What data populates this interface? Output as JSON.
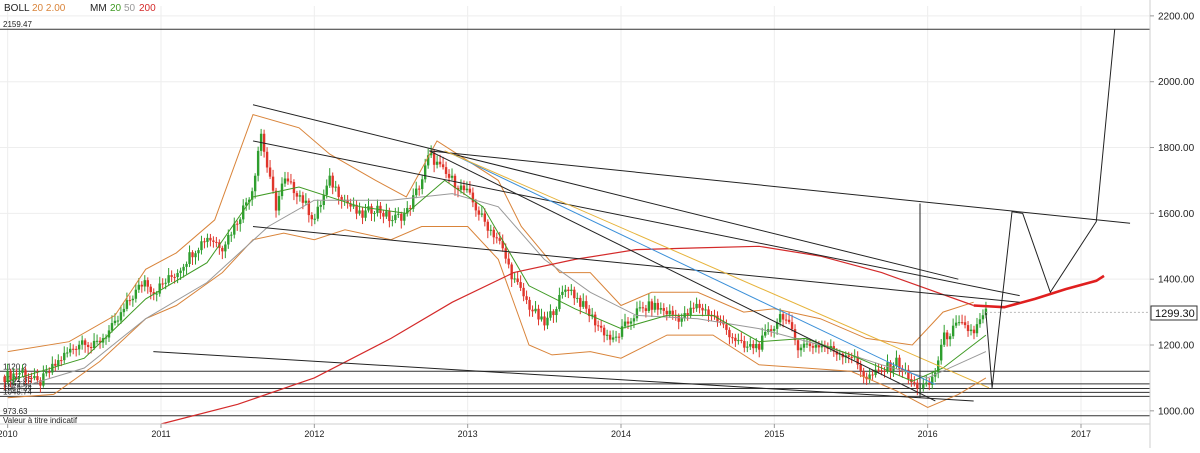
{
  "legend": {
    "boll_label": "BOLL",
    "boll_params": "20 2.00",
    "ma_label": "MM",
    "ma_fast": "20",
    "ma_mid": "50",
    "ma_slow": "200"
  },
  "colors": {
    "up": "#2e9e2e",
    "down": "#e0352b",
    "bollinger": "#d9843a",
    "ma20": "#3f9a24",
    "ma50": "#999999",
    "ma200": "#d42a2a",
    "projection": "#e01f1f",
    "trend": "#222222",
    "trend_blue": "#3a8fd8",
    "trend_yellow": "#e6b33a",
    "price_box": "#333333"
  },
  "chart_data": {
    "type": "candlestick",
    "title": "",
    "xlabel": "",
    "ylabel": "",
    "x_ticks": [
      "2010",
      "2011",
      "2012",
      "2013",
      "2014",
      "2015",
      "2016",
      "2017"
    ],
    "y_ticks": [
      "1000.00",
      "1200.00",
      "1400.00",
      "1600.00",
      "1800.00",
      "2000.00",
      "2200.00"
    ],
    "ylim": [
      960,
      2230
    ],
    "xlim": [
      2009.95,
      2017.45
    ],
    "last_price": "1299.30",
    "last_price_value": 1299.3,
    "horizontal_levels": [
      {
        "label": "2159.47",
        "value": 2159.47
      },
      {
        "label": "1120.2",
        "value": 1120.2
      },
      {
        "label": "1081.86",
        "value": 1081.86
      },
      {
        "label": "1062.62",
        "value": 1068
      },
      {
        "label": "1054.24",
        "value": 1056
      },
      {
        "label": "1045.74",
        "value": 1044
      },
      {
        "label": "973.63",
        "value": 985
      }
    ],
    "footnote": "Valeur à titre indicatif",
    "price_path": [
      [
        2009.95,
        1100
      ],
      [
        2010.1,
        1120
      ],
      [
        2010.2,
        1080
      ],
      [
        2010.35,
        1160
      ],
      [
        2010.5,
        1220
      ],
      [
        2010.55,
        1190
      ],
      [
        2010.7,
        1260
      ],
      [
        2010.8,
        1340
      ],
      [
        2010.9,
        1400
      ],
      [
        2010.95,
        1360
      ],
      [
        2011.0,
        1380
      ],
      [
        2011.1,
        1420
      ],
      [
        2011.2,
        1480
      ],
      [
        2011.3,
        1530
      ],
      [
        2011.4,
        1500
      ],
      [
        2011.5,
        1580
      ],
      [
        2011.6,
        1680
      ],
      [
        2011.65,
        1850
      ],
      [
        2011.7,
        1720
      ],
      [
        2011.75,
        1620
      ],
      [
        2011.8,
        1700
      ],
      [
        2011.9,
        1660
      ],
      [
        2012.0,
        1580
      ],
      [
        2012.1,
        1700
      ],
      [
        2012.2,
        1640
      ],
      [
        2012.3,
        1590
      ],
      [
        2012.4,
        1620
      ],
      [
        2012.5,
        1580
      ],
      [
        2012.6,
        1600
      ],
      [
        2012.7,
        1700
      ],
      [
        2012.75,
        1780
      ],
      [
        2012.85,
        1720
      ],
      [
        2012.95,
        1680
      ],
      [
        2013.0,
        1660
      ],
      [
        2013.1,
        1580
      ],
      [
        2013.2,
        1520
      ],
      [
        2013.3,
        1400
      ],
      [
        2013.4,
        1320
      ],
      [
        2013.5,
        1260
      ],
      [
        2013.55,
        1300
      ],
      [
        2013.65,
        1380
      ],
      [
        2013.75,
        1320
      ],
      [
        2013.85,
        1260
      ],
      [
        2013.95,
        1210
      ],
      [
        2014.0,
        1240
      ],
      [
        2014.1,
        1300
      ],
      [
        2014.2,
        1320
      ],
      [
        2014.3,
        1300
      ],
      [
        2014.4,
        1280
      ],
      [
        2014.5,
        1320
      ],
      [
        2014.6,
        1290
      ],
      [
        2014.7,
        1240
      ],
      [
        2014.8,
        1190
      ],
      [
        2014.9,
        1200
      ],
      [
        2015.0,
        1260
      ],
      [
        2015.05,
        1300
      ],
      [
        2015.15,
        1200
      ],
      [
        2015.3,
        1200
      ],
      [
        2015.4,
        1180
      ],
      [
        2015.5,
        1170
      ],
      [
        2015.6,
        1100
      ],
      [
        2015.7,
        1120
      ],
      [
        2015.8,
        1150
      ],
      [
        2015.9,
        1080
      ],
      [
        2016.0,
        1070
      ],
      [
        2016.05,
        1120
      ],
      [
        2016.1,
        1220
      ],
      [
        2016.2,
        1260
      ],
      [
        2016.3,
        1240
      ],
      [
        2016.38,
        1300
      ]
    ],
    "bollinger": {
      "upper": [
        [
          2010.0,
          1180
        ],
        [
          2010.4,
          1210
        ],
        [
          2010.7,
          1290
        ],
        [
          2010.9,
          1430
        ],
        [
          2011.1,
          1480
        ],
        [
          2011.35,
          1580
        ],
        [
          2011.6,
          1900
        ],
        [
          2011.9,
          1860
        ],
        [
          2012.1,
          1780
        ],
        [
          2012.4,
          1700
        ],
        [
          2012.6,
          1650
        ],
        [
          2012.8,
          1820
        ],
        [
          2013.0,
          1760
        ],
        [
          2013.2,
          1700
        ],
        [
          2013.35,
          1560
        ],
        [
          2013.6,
          1420
        ],
        [
          2013.8,
          1420
        ],
        [
          2014.0,
          1320
        ],
        [
          2014.2,
          1360
        ],
        [
          2014.5,
          1360
        ],
        [
          2014.8,
          1300
        ],
        [
          2015.0,
          1310
        ],
        [
          2015.3,
          1280
        ],
        [
          2015.6,
          1220
        ],
        [
          2015.9,
          1200
        ],
        [
          2016.1,
          1300
        ],
        [
          2016.3,
          1330
        ]
      ],
      "lower": [
        [
          2010.0,
          1040
        ],
        [
          2010.3,
          1050
        ],
        [
          2010.6,
          1150
        ],
        [
          2010.9,
          1280
        ],
        [
          2011.1,
          1320
        ],
        [
          2011.4,
          1420
        ],
        [
          2011.6,
          1520
        ],
        [
          2011.8,
          1540
        ],
        [
          2012.0,
          1520
        ],
        [
          2012.2,
          1550
        ],
        [
          2012.5,
          1520
        ],
        [
          2012.7,
          1560
        ],
        [
          2013.0,
          1560
        ],
        [
          2013.2,
          1460
        ],
        [
          2013.4,
          1200
        ],
        [
          2013.55,
          1170
        ],
        [
          2013.8,
          1180
        ],
        [
          2014.0,
          1160
        ],
        [
          2014.3,
          1230
        ],
        [
          2014.6,
          1230
        ],
        [
          2014.9,
          1140
        ],
        [
          2015.2,
          1130
        ],
        [
          2015.5,
          1120
        ],
        [
          2015.8,
          1060
        ],
        [
          2016.0,
          1010
        ],
        [
          2016.2,
          1050
        ],
        [
          2016.38,
          1100
        ]
      ]
    },
    "ma20": [
      [
        2010.0,
        1090
      ],
      [
        2010.5,
        1160
      ],
      [
        2010.9,
        1340
      ],
      [
        2011.3,
        1450
      ],
      [
        2011.6,
        1650
      ],
      [
        2011.9,
        1680
      ],
      [
        2012.3,
        1620
      ],
      [
        2012.6,
        1600
      ],
      [
        2012.85,
        1700
      ],
      [
        2013.1,
        1620
      ],
      [
        2013.4,
        1380
      ],
      [
        2013.7,
        1310
      ],
      [
        2014.0,
        1250
      ],
      [
        2014.3,
        1290
      ],
      [
        2014.6,
        1290
      ],
      [
        2014.9,
        1210
      ],
      [
        2015.2,
        1220
      ],
      [
        2015.5,
        1170
      ],
      [
        2015.9,
        1090
      ],
      [
        2016.1,
        1130
      ],
      [
        2016.38,
        1230
      ]
    ],
    "ma50": [
      [
        2010.0,
        1060
      ],
      [
        2010.5,
        1130
      ],
      [
        2010.9,
        1280
      ],
      [
        2011.3,
        1390
      ],
      [
        2011.7,
        1560
      ],
      [
        2012.0,
        1640
      ],
      [
        2012.5,
        1640
      ],
      [
        2012.9,
        1660
      ],
      [
        2013.2,
        1620
      ],
      [
        2013.5,
        1460
      ],
      [
        2013.8,
        1360
      ],
      [
        2014.1,
        1290
      ],
      [
        2014.5,
        1280
      ],
      [
        2014.9,
        1250
      ],
      [
        2015.3,
        1200
      ],
      [
        2015.7,
        1140
      ],
      [
        2016.0,
        1100
      ],
      [
        2016.38,
        1180
      ]
    ],
    "ma200": [
      [
        2011.0,
        960
      ],
      [
        2011.5,
        1020
      ],
      [
        2012.0,
        1100
      ],
      [
        2012.5,
        1220
      ],
      [
        2012.9,
        1330
      ],
      [
        2013.3,
        1420
      ],
      [
        2013.7,
        1460
      ],
      [
        2014.1,
        1490
      ],
      [
        2014.5,
        1495
      ],
      [
        2014.9,
        1500
      ],
      [
        2015.3,
        1470
      ],
      [
        2015.7,
        1420
      ],
      [
        2016.0,
        1370
      ],
      [
        2016.3,
        1320
      ]
    ],
    "projection": [
      [
        2016.3,
        1320
      ],
      [
        2016.5,
        1315
      ],
      [
        2016.7,
        1340
      ],
      [
        2016.9,
        1370
      ],
      [
        2017.1,
        1395
      ],
      [
        2017.15,
        1410
      ]
    ],
    "zigzag": [
      [
        2016.38,
        1300
      ],
      [
        2016.42,
        1070
      ],
      [
        2016.55,
        1605
      ],
      [
        2016.62,
        1600
      ],
      [
        2016.8,
        1360
      ],
      [
        2017.1,
        1575
      ],
      [
        2017.22,
        2159
      ]
    ],
    "trendlines": [
      {
        "from": [
          2011.6,
          1930
        ],
        "to": [
          2016.2,
          1400
        ],
        "color": "trend"
      },
      {
        "from": [
          2012.75,
          1790
        ],
        "to": [
          2017.32,
          1570
        ],
        "color": "trend"
      },
      {
        "from": [
          2011.6,
          1820
        ],
        "to": [
          2016.6,
          1350
        ],
        "color": "trend"
      },
      {
        "from": [
          2011.6,
          1560
        ],
        "to": [
          2016.6,
          1330
        ],
        "color": "trend"
      },
      {
        "from": [
          2012.75,
          1790
        ],
        "to": [
          2016.05,
          1030
        ],
        "color": "trend"
      },
      {
        "from": [
          2010.95,
          1180
        ],
        "to": [
          2016.3,
          1030
        ],
        "color": "trend"
      },
      {
        "from": [
          2012.9,
          1780
        ],
        "to": [
          2016.05,
          1080
        ],
        "color": "trend_blue"
      },
      {
        "from": [
          2012.85,
          1790
        ],
        "to": [
          2016.4,
          1070
        ],
        "color": "trend_yellow"
      },
      {
        "from": [
          2015.95,
          1040
        ],
        "to": [
          2015.95,
          1630
        ],
        "color": "trend"
      }
    ]
  }
}
